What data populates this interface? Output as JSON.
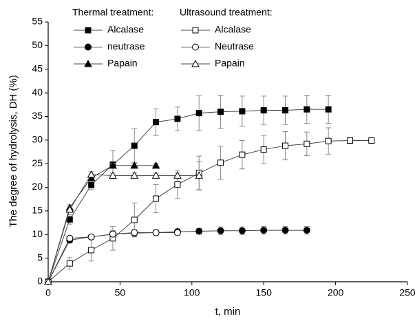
{
  "chart_data": {
    "type": "line",
    "xlabel": "t, min",
    "ylabel": "The degree of hydrolysis, DH (%)",
    "xlim": [
      0,
      250
    ],
    "xticks": [
      0,
      50,
      100,
      150,
      200,
      250
    ],
    "ylim": [
      0,
      55
    ],
    "yticks": [
      0,
      5,
      10,
      15,
      20,
      25,
      30,
      35,
      40,
      45,
      50,
      55
    ],
    "groups": [
      {
        "title": "Thermal treatment:",
        "series": [
          {
            "name": "Alcalase",
            "color": "#000000",
            "marker": "square",
            "filled": true,
            "x": [
              0,
              15,
              30,
              45,
              60,
              75,
              90,
              105,
              120,
              135,
              150,
              165,
              180,
              195
            ],
            "values": [
              0,
              13.2,
              20.5,
              24.8,
              28.8,
              33.8,
              34.5,
              35.7,
              36,
              36.1,
              36.3,
              36.3,
              36.5,
              36.5
            ],
            "errors": [
              null,
              1,
              1,
              3,
              3.6,
              2.8,
              2.5,
              3.7,
              3.5,
              3.2,
              3,
              3,
              3,
              3
            ]
          },
          {
            "name": "neutrase",
            "color": "#000000",
            "marker": "circle",
            "filled": true,
            "x": [
              0,
              15,
              30,
              45,
              60,
              75,
              90,
              105,
              120,
              135,
              150,
              165,
              180
            ],
            "values": [
              0,
              8.8,
              9.5,
              10.1,
              10.3,
              10.4,
              10.6,
              10.7,
              10.8,
              10.8,
              10.9,
              10.9,
              10.9
            ],
            "errors": [
              null,
              0.5,
              0.5,
              0.7,
              0.7,
              0.6,
              0.6,
              0.6,
              0.8,
              0.8,
              0.8,
              0.8,
              0.8
            ]
          },
          {
            "name": "Papain",
            "color": "#000000",
            "marker": "triangle",
            "filled": true,
            "x": [
              0,
              15,
              30,
              45,
              60,
              75
            ],
            "values": [
              0,
              15.7,
              22,
              24.6,
              24.6,
              24.6
            ],
            "errors": [
              null,
              0.6,
              0.8,
              0.5,
              0.5,
              0.5
            ]
          }
        ]
      },
      {
        "title": "Ultrasound treatment:",
        "series": [
          {
            "name": "Alcalase",
            "color": "#000000",
            "marker": "square",
            "filled": false,
            "x": [
              0,
              15,
              30,
              45,
              60,
              75,
              90,
              105,
              120,
              135,
              150,
              165,
              180,
              195,
              210,
              225
            ],
            "values": [
              0,
              3.9,
              6.7,
              9.2,
              13.1,
              17.6,
              20.6,
              23,
              25.2,
              26.9,
              28,
              28.8,
              29.2,
              29.8,
              29.9,
              29.9
            ],
            "errors": [
              null,
              1.2,
              2.3,
              2.5,
              3.6,
              3,
              3,
              3.6,
              3.5,
              3,
              3,
              3,
              2.5,
              2.8,
              null,
              null
            ]
          },
          {
            "name": "Neutrase",
            "color": "#000000",
            "marker": "circle",
            "filled": false,
            "x": [
              0,
              15,
              30,
              45,
              60,
              75,
              90
            ],
            "values": [
              0,
              9.2,
              9.5,
              10.1,
              10.4,
              10.4,
              10.4
            ],
            "errors": [
              null,
              0.5,
              0.5,
              0.6,
              0.5,
              0.5,
              0.5
            ]
          },
          {
            "name": "Papain",
            "color": "#000000",
            "marker": "triangle",
            "filled": false,
            "x": [
              0,
              15,
              30,
              45,
              60,
              75,
              90,
              105
            ],
            "values": [
              0,
              15.3,
              22.7,
              22.5,
              22.5,
              22.5,
              22.5,
              22.5
            ],
            "errors": [
              null,
              0.6,
              0.6,
              0.5,
              0.5,
              0.5,
              0.5,
              3
            ]
          }
        ]
      }
    ]
  }
}
